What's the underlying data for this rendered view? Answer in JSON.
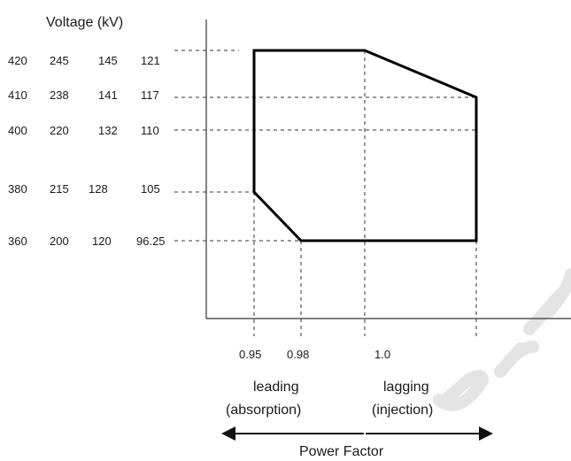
{
  "title": "Voltage (kV)",
  "voltage_rows": [
    {
      "values": [
        "420",
        "245",
        "145",
        "121"
      ]
    },
    {
      "values": [
        "410",
        "238",
        "141",
        "117"
      ]
    },
    {
      "values": [
        "400",
        "220",
        "132",
        "110"
      ]
    },
    {
      "values": [
        "380",
        "215",
        "128",
        "105"
      ]
    },
    {
      "values": [
        "360",
        "200",
        "120",
        "96.25"
      ]
    }
  ],
  "power_factor_ticks": [
    "0.95",
    "0.98",
    "1.0"
  ],
  "leading": {
    "line1": "leading",
    "line2": "(absorption)"
  },
  "lagging": {
    "line1": "lagging",
    "line2": "(injection)"
  },
  "axis_title": "Power Factor",
  "watermark": "Draft"
}
